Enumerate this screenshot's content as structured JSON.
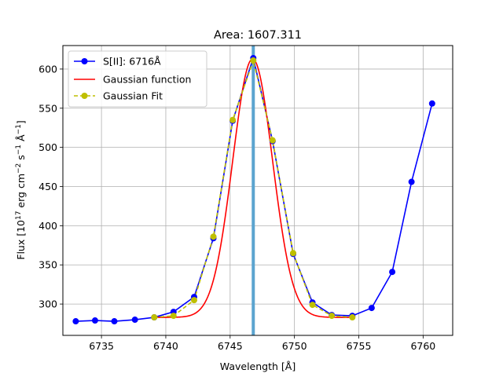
{
  "chart_data": {
    "type": "line",
    "title": "Area: 1607.311",
    "xlabel": "Wavelength [Å]",
    "ylabel_parts": {
      "a": "Flux [10",
      "a_sup": "17",
      "b": " erg cm",
      "b_sup": "−2",
      "c": " s",
      "c_sup": "−1",
      "d": " Å",
      "d_sup": "−1",
      "e": "]"
    },
    "xlim": [
      6732,
      6762.3
    ],
    "ylim": [
      260,
      630
    ],
    "xticks": [
      6735,
      6740,
      6745,
      6750,
      6755,
      6760
    ],
    "yticks": [
      300,
      350,
      400,
      450,
      500,
      550,
      600
    ],
    "grid": true,
    "legend_position": "top-left",
    "vline": {
      "x": 6746.8,
      "color": "#5ba4cf"
    },
    "series": [
      {
        "name": "S[II]: 6716Å",
        "color": "#0000ff",
        "style": "solid-marker",
        "x": [
          6733.0,
          6734.5,
          6736.0,
          6737.6,
          6739.1,
          6740.6,
          6742.2,
          6743.7,
          6745.2,
          6746.8,
          6748.3,
          6749.9,
          6751.4,
          6752.9,
          6754.5,
          6756.0,
          6757.6,
          6759.1,
          6760.7
        ],
        "y": [
          278,
          279,
          278,
          280,
          283,
          290,
          309,
          384,
          534,
          614,
          508,
          364,
          302,
          286,
          285,
          295,
          341,
          456,
          556
        ]
      },
      {
        "name": "Gaussian function",
        "color": "#ff0000",
        "style": "solid",
        "baseline": 283,
        "amplitude": 330,
        "center": 6746.75,
        "sigma": 1.55,
        "x_range": [
          6739.1,
          6754.5
        ]
      },
      {
        "name": "Gaussian Fit",
        "color": "#bfbf00",
        "style": "dashed-marker",
        "x": [
          6739.1,
          6740.6,
          6742.2,
          6743.7,
          6745.2,
          6746.8,
          6748.3,
          6749.9,
          6751.4,
          6752.9,
          6754.5
        ],
        "y": [
          283,
          285,
          305,
          386,
          535,
          611,
          509,
          365,
          299,
          285,
          283
        ]
      }
    ]
  }
}
